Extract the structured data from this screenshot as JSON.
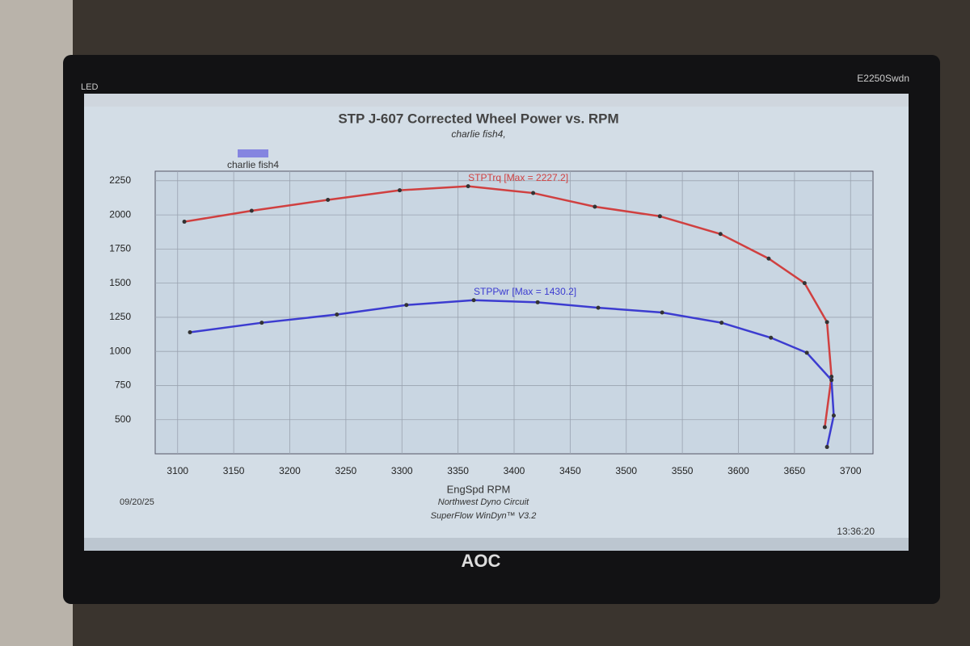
{
  "monitor": {
    "led": "LED",
    "model": "E2250Swdn",
    "brand": "AOC"
  },
  "chart_data": {
    "type": "line",
    "title": "STP J-607 Corrected Wheel Power vs. RPM",
    "subtitle": "charlie fish4,",
    "legend": {
      "label": "charlie fish4",
      "color": "#8585e0"
    },
    "x_label": "EngSpd RPM",
    "annotations": [
      "STPTrq [Max = 2227.2]",
      "STPPwr [Max = 1430.2]"
    ],
    "footer": {
      "date": "09/20/25",
      "shop": "Northwest Dyno Circuit",
      "software": "SuperFlow WinDyn™ V3.2",
      "time": "13:36:20"
    },
    "xlim": [
      3080,
      3720
    ],
    "ylim": [
      250,
      2320
    ],
    "xticks": [
      3100,
      3150,
      3200,
      3250,
      3300,
      3350,
      3400,
      3450,
      3500,
      3550,
      3600,
      3650,
      3700
    ],
    "yticks": [
      500,
      750,
      1000,
      1250,
      1500,
      1750,
      2000,
      2250
    ],
    "grid": true,
    "series": [
      {
        "color": "#d04040",
        "x": [
          3106,
          3166,
          3234,
          3298,
          3359,
          3417,
          3472,
          3530,
          3584,
          3627,
          3659,
          3679,
          3683,
          3677
        ],
        "values": [
          1950,
          2030,
          2110,
          2180,
          2210,
          2160,
          2060,
          1990,
          1860,
          1680,
          1500,
          1215,
          815,
          445
        ]
      },
      {
        "color": "#3c3cd0",
        "x": [
          3111,
          3175,
          3242,
          3304,
          3364,
          3421,
          3475,
          3532,
          3585,
          3629,
          3661,
          3683,
          3685,
          3679
        ],
        "values": [
          1140,
          1210,
          1270,
          1340,
          1375,
          1360,
          1320,
          1285,
          1210,
          1100,
          990,
          790,
          530,
          300
        ]
      }
    ]
  }
}
